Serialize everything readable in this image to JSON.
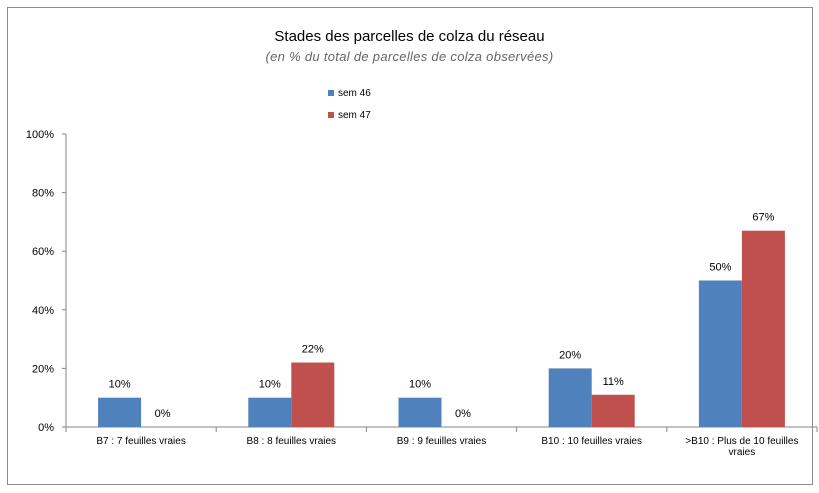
{
  "chart_data": {
    "type": "bar",
    "title": "Stades des parcelles de colza du réseau",
    "subtitle": "(en %  du total de parcelles de colza observées)",
    "categories": [
      [
        "B7 : 7 feuilles vraies"
      ],
      [
        "B8 : 8 feuilles vraies"
      ],
      [
        "B9 : 9 feuilles vraies"
      ],
      [
        "B10 : 10 feuilles vraies"
      ],
      [
        ">B10 : Plus de 10 feuilles",
        "vraies"
      ]
    ],
    "series": [
      {
        "name": "sem 46",
        "color": "#4f81bd",
        "values": [
          10,
          10,
          10,
          20,
          50
        ],
        "labels": [
          "10%",
          "10%",
          "10%",
          "20%",
          "50%"
        ]
      },
      {
        "name": "sem 47",
        "color": "#c0504d",
        "values": [
          0,
          22,
          0,
          11,
          67
        ],
        "labels": [
          "0%",
          "22%",
          "0%",
          "11%",
          "67%"
        ]
      }
    ],
    "yticks": [
      "0%",
      "20%",
      "40%",
      "60%",
      "80%",
      "100%"
    ],
    "ylim": [
      0,
      100
    ],
    "legend_position": "top-center",
    "grid": false
  }
}
